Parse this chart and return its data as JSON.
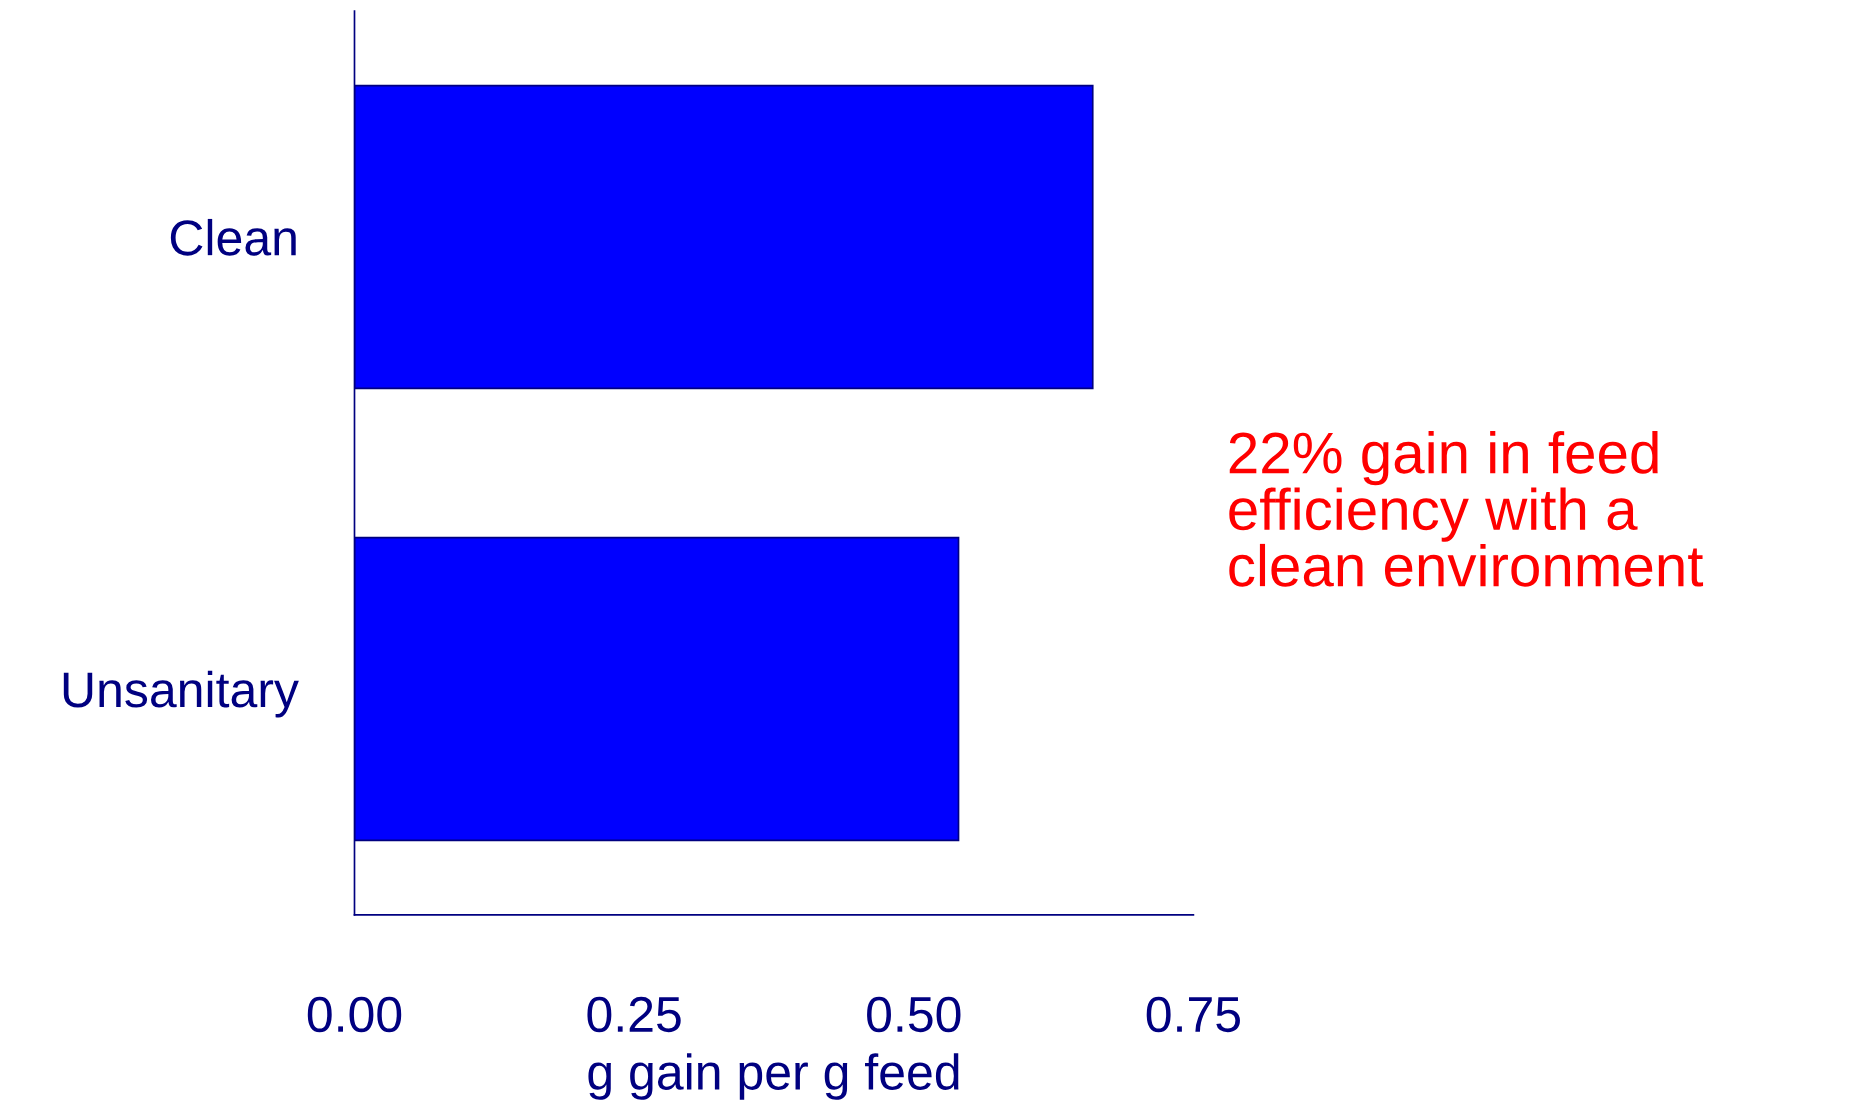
{
  "chart_data": {
    "type": "bar",
    "orientation": "horizontal",
    "categories": [
      "Clean",
      "Unsanitary"
    ],
    "values": [
      0.66,
      0.54
    ],
    "color": "#0000ff",
    "xlabel": "g gain per g feed",
    "xlim": [
      0,
      0.75
    ],
    "xticks": [
      {
        "value": 0,
        "label": "0.00"
      },
      {
        "value": 0.25,
        "label": "0.25"
      },
      {
        "value": 0.5,
        "label": "0.50"
      },
      {
        "value": 0.75,
        "label": "0.75"
      }
    ],
    "annotations": [
      "22% gain in feed\nefficiency with a\nclean environment"
    ],
    "grid": false,
    "legend": false
  }
}
